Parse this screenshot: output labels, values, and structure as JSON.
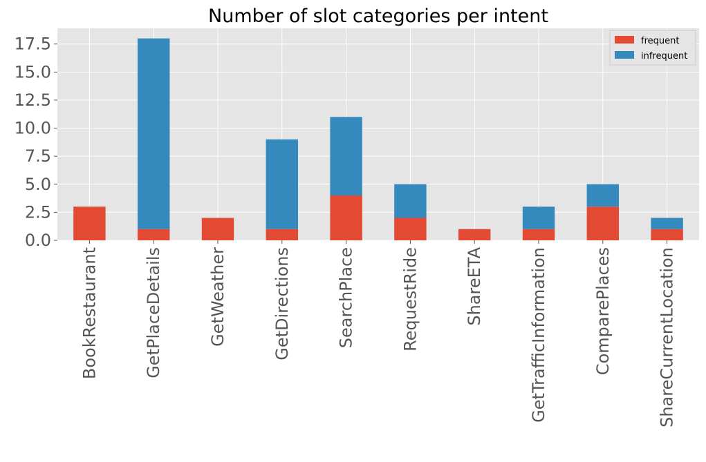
{
  "chart_data": {
    "type": "bar",
    "stacked": true,
    "title": "Number of slot categories per intent",
    "xlabel": "",
    "ylabel": "",
    "categories": [
      "BookRestaurant",
      "GetPlaceDetails",
      "GetWeather",
      "GetDirections",
      "SearchPlace",
      "RequestRide",
      "ShareETA",
      "GetTrafficInformation",
      "ComparePlaces",
      "ShareCurrentLocation"
    ],
    "series": [
      {
        "name": "frequent",
        "color": "#E24A33",
        "values": [
          3,
          1,
          2,
          1,
          4,
          2,
          1,
          1,
          3,
          1
        ]
      },
      {
        "name": "infrequent",
        "color": "#348ABD",
        "values": [
          0,
          17,
          0,
          8,
          7,
          3,
          0,
          2,
          2,
          1
        ]
      }
    ],
    "ylim": [
      0,
      18.9
    ],
    "yticks": [
      "0.0",
      "2.5",
      "5.0",
      "7.5",
      "10.0",
      "12.5",
      "15.0",
      "17.5"
    ],
    "yticks_values": [
      0,
      2.5,
      5,
      7.5,
      10,
      12.5,
      15,
      17.5
    ],
    "grid": true,
    "legend_position": "top-right"
  }
}
